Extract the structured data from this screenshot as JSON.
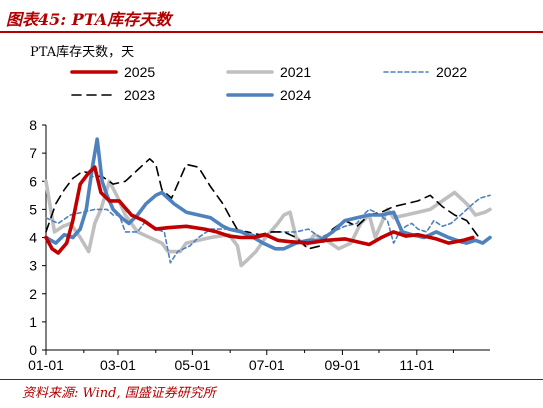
{
  "figure": {
    "title": "图表45:  PTA库存天数",
    "source": "资料来源:  Wind,  国盛证券研究所"
  },
  "chart_data": {
    "type": "line",
    "title": "图表45:  PTA库存天数",
    "unit_label": "PTA库存天数，天",
    "ylim": [
      0,
      8
    ],
    "y_ticks": [
      0,
      1,
      2,
      3,
      4,
      5,
      6,
      7,
      8
    ],
    "x_ticks": [
      "01-01",
      "03-01",
      "05-01",
      "07-01",
      "09-01",
      "11-01"
    ],
    "x_tick_days": [
      0,
      59,
      120,
      181,
      243,
      304
    ],
    "x_range_days": [
      0,
      364
    ],
    "grid": false,
    "legend_position": "top",
    "series": [
      {
        "name": "2025",
        "color": "#c00000",
        "style": "solid",
        "points": [
          [
            0,
            4.0
          ],
          [
            5,
            3.6
          ],
          [
            10,
            3.45
          ],
          [
            17,
            3.8
          ],
          [
            22,
            4.6
          ],
          [
            28,
            5.9
          ],
          [
            35,
            6.3
          ],
          [
            40,
            6.5
          ],
          [
            45,
            5.6
          ],
          [
            52,
            5.3
          ],
          [
            60,
            5.3
          ],
          [
            70,
            4.8
          ],
          [
            80,
            4.6
          ],
          [
            90,
            4.3
          ],
          [
            100,
            4.35
          ],
          [
            115,
            4.4
          ],
          [
            130,
            4.3
          ],
          [
            140,
            4.2
          ],
          [
            150,
            4.05
          ],
          [
            160,
            4.0
          ],
          [
            170,
            4.0
          ],
          [
            180,
            4.1
          ],
          [
            190,
            3.9
          ],
          [
            200,
            3.85
          ],
          [
            215,
            3.8
          ],
          [
            230,
            3.9
          ],
          [
            245,
            3.95
          ],
          [
            255,
            3.85
          ],
          [
            265,
            3.75
          ],
          [
            275,
            4.0
          ],
          [
            285,
            4.2
          ],
          [
            295,
            4.05
          ],
          [
            305,
            4.1
          ],
          [
            315,
            4.0
          ],
          [
            320,
            3.95
          ],
          [
            330,
            3.8
          ],
          [
            342,
            3.9
          ],
          [
            350,
            4.0
          ]
        ]
      },
      {
        "name": "2021",
        "color": "#bfbfbf",
        "style": "solid",
        "points": [
          [
            0,
            6.0
          ],
          [
            7,
            4.2
          ],
          [
            14,
            4.4
          ],
          [
            20,
            4.5
          ],
          [
            28,
            4.0
          ],
          [
            35,
            3.5
          ],
          [
            40,
            4.5
          ],
          [
            45,
            5.0
          ],
          [
            52,
            6.0
          ],
          [
            58,
            5.5
          ],
          [
            65,
            4.8
          ],
          [
            75,
            4.2
          ],
          [
            85,
            4.0
          ],
          [
            95,
            3.8
          ],
          [
            100,
            3.5
          ],
          [
            110,
            3.5
          ],
          [
            115,
            3.8
          ],
          [
            125,
            3.9
          ],
          [
            135,
            4.0
          ],
          [
            150,
            4.1
          ],
          [
            157,
            3.7
          ],
          [
            160,
            3.0
          ],
          [
            165,
            3.2
          ],
          [
            172,
            3.5
          ],
          [
            180,
            4.0
          ],
          [
            190,
            4.5
          ],
          [
            195,
            4.8
          ],
          [
            200,
            4.9
          ],
          [
            205,
            4.0
          ],
          [
            213,
            3.7
          ],
          [
            220,
            4.1
          ],
          [
            230,
            3.9
          ],
          [
            240,
            3.6
          ],
          [
            250,
            3.8
          ],
          [
            258,
            4.5
          ],
          [
            265,
            4.8
          ],
          [
            270,
            4.0
          ],
          [
            280,
            5.0
          ],
          [
            285,
            4.7
          ],
          [
            295,
            4.8
          ],
          [
            305,
            4.9
          ],
          [
            315,
            5.0
          ],
          [
            325,
            5.3
          ],
          [
            335,
            5.6
          ],
          [
            345,
            5.2
          ],
          [
            352,
            4.8
          ],
          [
            360,
            4.9
          ],
          [
            364,
            5.0
          ]
        ]
      },
      {
        "name": "2022",
        "color": "#4f81bd",
        "style": "dashed",
        "points": [
          [
            0,
            4.7
          ],
          [
            10,
            4.5
          ],
          [
            20,
            4.8
          ],
          [
            30,
            4.9
          ],
          [
            40,
            5.0
          ],
          [
            50,
            5.0
          ],
          [
            55,
            4.8
          ],
          [
            60,
            4.8
          ],
          [
            65,
            4.2
          ],
          [
            75,
            4.2
          ],
          [
            82,
            4.6
          ],
          [
            90,
            4.3
          ],
          [
            97,
            4.2
          ],
          [
            102,
            3.1
          ],
          [
            108,
            3.5
          ],
          [
            118,
            3.7
          ],
          [
            125,
            4.0
          ],
          [
            135,
            4.3
          ],
          [
            145,
            4.3
          ],
          [
            155,
            4.3
          ],
          [
            165,
            4.2
          ],
          [
            175,
            4.0
          ],
          [
            185,
            4.2
          ],
          [
            195,
            4.2
          ],
          [
            205,
            4.2
          ],
          [
            215,
            4.3
          ],
          [
            225,
            4.0
          ],
          [
            235,
            4.2
          ],
          [
            245,
            4.4
          ],
          [
            255,
            4.5
          ],
          [
            260,
            4.8
          ],
          [
            265,
            5.0
          ],
          [
            270,
            4.9
          ],
          [
            280,
            4.6
          ],
          [
            285,
            3.8
          ],
          [
            290,
            4.2
          ],
          [
            295,
            4.4
          ],
          [
            300,
            4.5
          ],
          [
            305,
            4.3
          ],
          [
            312,
            4.2
          ],
          [
            318,
            4.6
          ],
          [
            325,
            4.4
          ],
          [
            332,
            4.5
          ],
          [
            340,
            4.8
          ],
          [
            345,
            5.0
          ],
          [
            350,
            5.2
          ],
          [
            356,
            5.4
          ],
          [
            364,
            5.5
          ]
        ]
      },
      {
        "name": "2023",
        "color": "#000000",
        "style": "dashed",
        "points": [
          [
            0,
            4.2
          ],
          [
            8,
            5.2
          ],
          [
            15,
            5.7
          ],
          [
            22,
            6.1
          ],
          [
            30,
            6.35
          ],
          [
            35,
            6.3
          ],
          [
            40,
            6.1
          ],
          [
            45,
            6.2
          ],
          [
            55,
            5.9
          ],
          [
            65,
            6.0
          ],
          [
            75,
            6.4
          ],
          [
            85,
            6.8
          ],
          [
            90,
            6.6
          ],
          [
            95,
            5.7
          ],
          [
            103,
            5.4
          ],
          [
            110,
            6.1
          ],
          [
            115,
            6.6
          ],
          [
            125,
            6.5
          ],
          [
            135,
            5.8
          ],
          [
            145,
            5.2
          ],
          [
            150,
            4.8
          ],
          [
            158,
            4.2
          ],
          [
            165,
            4.2
          ],
          [
            175,
            4.1
          ],
          [
            185,
            4.2
          ],
          [
            195,
            4.2
          ],
          [
            205,
            4.0
          ],
          [
            215,
            3.6
          ],
          [
            225,
            3.7
          ],
          [
            235,
            4.3
          ],
          [
            245,
            4.6
          ],
          [
            255,
            4.4
          ],
          [
            265,
            4.8
          ],
          [
            275,
            4.9
          ],
          [
            285,
            5.1
          ],
          [
            295,
            5.2
          ],
          [
            305,
            5.3
          ],
          [
            315,
            5.5
          ],
          [
            325,
            5.1
          ],
          [
            335,
            4.8
          ],
          [
            345,
            4.6
          ],
          [
            355,
            4.0
          ]
        ]
      },
      {
        "name": "2024",
        "color": "#4f81bd",
        "style": "solid",
        "points": [
          [
            0,
            4.0
          ],
          [
            8,
            3.8
          ],
          [
            15,
            4.1
          ],
          [
            22,
            4.0
          ],
          [
            28,
            4.3
          ],
          [
            33,
            5.0
          ],
          [
            38,
            6.5
          ],
          [
            42,
            7.5
          ],
          [
            46,
            6.0
          ],
          [
            50,
            5.5
          ],
          [
            55,
            5.0
          ],
          [
            62,
            4.7
          ],
          [
            68,
            4.5
          ],
          [
            75,
            4.8
          ],
          [
            82,
            5.2
          ],
          [
            90,
            5.5
          ],
          [
            95,
            5.6
          ],
          [
            105,
            5.2
          ],
          [
            115,
            4.9
          ],
          [
            125,
            4.8
          ],
          [
            135,
            4.7
          ],
          [
            145,
            4.4
          ],
          [
            150,
            4.3
          ],
          [
            160,
            4.2
          ],
          [
            170,
            4.0
          ],
          [
            178,
            3.8
          ],
          [
            188,
            3.6
          ],
          [
            195,
            3.6
          ],
          [
            205,
            3.8
          ],
          [
            215,
            3.9
          ],
          [
            225,
            3.9
          ],
          [
            235,
            4.2
          ],
          [
            245,
            4.6
          ],
          [
            255,
            4.7
          ],
          [
            265,
            4.8
          ],
          [
            275,
            4.8
          ],
          [
            285,
            4.9
          ],
          [
            292,
            4.2
          ],
          [
            300,
            4.1
          ],
          [
            310,
            4.0
          ],
          [
            320,
            4.2
          ],
          [
            330,
            4.0
          ],
          [
            340,
            3.85
          ],
          [
            345,
            3.8
          ],
          [
            352,
            3.9
          ],
          [
            358,
            3.8
          ],
          [
            364,
            4.0
          ]
        ]
      }
    ]
  }
}
